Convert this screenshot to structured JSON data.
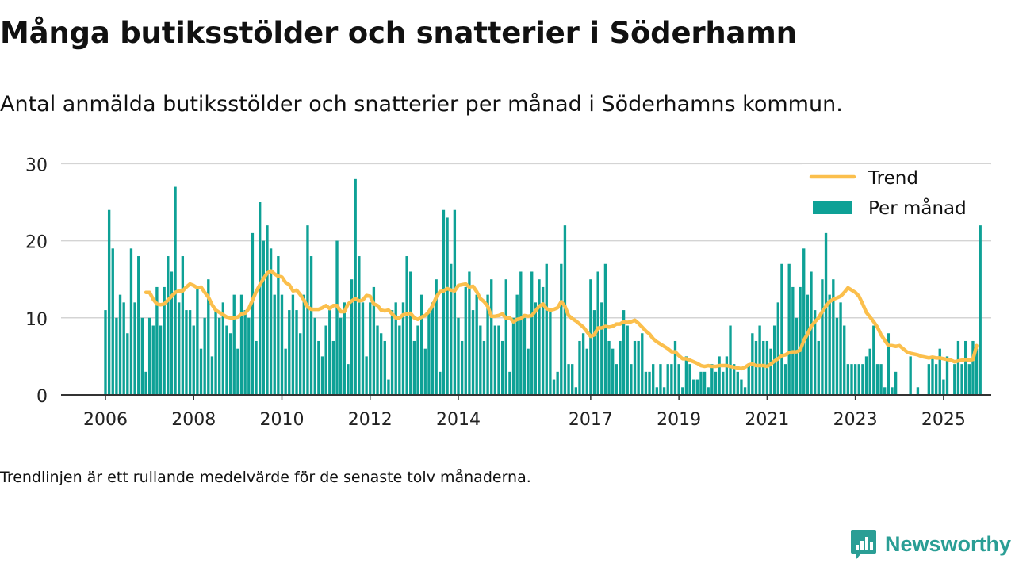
{
  "title": "Många butiksstölder och snatterier i Söderhamn",
  "subtitle": "Antal anmälda butiksstölder och snatterier per månad i Söderhamns kommun.",
  "note": "Trendlinjen är ett rullande medelvärde för de senaste tolv månaderna.",
  "brand": {
    "name": "Newsworthy",
    "color": "#2a9e95"
  },
  "chart_data": {
    "type": "bar",
    "start": "2006-01",
    "frequency": "monthly",
    "y_ticks": [
      0,
      10,
      20,
      30
    ],
    "ylim": [
      0,
      30
    ],
    "x_tick_labels": [
      "2006",
      "2008",
      "2010",
      "2012",
      "2014",
      "2017",
      "2019",
      "2021",
      "2023",
      "2025"
    ],
    "grid": true,
    "legend": {
      "placement": "top-right",
      "entries": [
        "Trend",
        "Per månad"
      ]
    },
    "colors": {
      "bars": "#0ea196",
      "trend": "#fbbf4c",
      "grid": "#d4d4d4",
      "axis": "#333333"
    },
    "series": [
      {
        "name": "Per månad",
        "kind": "bar",
        "values": [
          11,
          24,
          19,
          10,
          13,
          12,
          8,
          19,
          12,
          18,
          10,
          3,
          10,
          9,
          14,
          9,
          14,
          18,
          16,
          27,
          12,
          18,
          11,
          11,
          9,
          14,
          6,
          10,
          15,
          5,
          11,
          10,
          12,
          9,
          8,
          13,
          6,
          13,
          11,
          10,
          21,
          7,
          25,
          20,
          22,
          19,
          13,
          18,
          13,
          6,
          11,
          13,
          11,
          8,
          13,
          22,
          18,
          10,
          7,
          5,
          9,
          11,
          7,
          20,
          10,
          12,
          4,
          15,
          28,
          18,
          12,
          5,
          12,
          14,
          9,
          8,
          7,
          2,
          11,
          12,
          9,
          12,
          18,
          16,
          7,
          9,
          13,
          6,
          11,
          12,
          15,
          3,
          24,
          23,
          17,
          24,
          10,
          7,
          14,
          16,
          11,
          13,
          9,
          7,
          13,
          15,
          9,
          9,
          7,
          15,
          3,
          10,
          13,
          16,
          10,
          6,
          16,
          12,
          15,
          14,
          17,
          11,
          2,
          3,
          17,
          22,
          4,
          4,
          1,
          7,
          8,
          6,
          15,
          11,
          16,
          12,
          17,
          7,
          6,
          4,
          7,
          11,
          9,
          4,
          7,
          7,
          8,
          3,
          3,
          4,
          1,
          4,
          1,
          4,
          4,
          7,
          4,
          1,
          5,
          4,
          2,
          2,
          3,
          3,
          1,
          4,
          3,
          5,
          3,
          5,
          9,
          4,
          3,
          2,
          1,
          4,
          8,
          7,
          9,
          7,
          7,
          6,
          9,
          12,
          17,
          4,
          17,
          14,
          10,
          14,
          19,
          13,
          16,
          11,
          7,
          15,
          21,
          13,
          15,
          10,
          12,
          9,
          4,
          4,
          4,
          4,
          4,
          5,
          6,
          9,
          4,
          4,
          1,
          8,
          1,
          3,
          0,
          0,
          0,
          5,
          0,
          1,
          0,
          0,
          4,
          5,
          4,
          6,
          2,
          5,
          0,
          4,
          7,
          4,
          7,
          4,
          7,
          6,
          22
        ]
      },
      {
        "name": "Trend",
        "kind": "line",
        "start": "2006-12",
        "values": [
          13.3,
          13.3,
          12.4,
          11.8,
          11.7,
          11.8,
          12.3,
          12.8,
          13.3,
          13.5,
          13.5,
          14.0,
          14.4,
          14.2,
          13.9,
          14.0,
          13.3,
          12.7,
          11.7,
          11.0,
          10.7,
          10.4,
          10.1,
          10.0,
          10.0,
          10.1,
          10.5,
          10.6,
          11.2,
          12.3,
          13.4,
          14.3,
          15.1,
          15.8,
          16.1,
          15.7,
          15.4,
          15.3,
          14.6,
          14.3,
          13.5,
          13.6,
          13.0,
          12.3,
          11.4,
          11.1,
          11.1,
          11.1,
          11.3,
          11.6,
          11.2,
          11.6,
          11.6,
          10.8,
          10.8,
          11.8,
          12.2,
          12.5,
          12.2,
          12.3,
          12.9,
          12.8,
          11.8,
          11.6,
          11.0,
          10.9,
          11.0,
          10.5,
          10.0,
          10.0,
          10.4,
          10.5,
          10.6,
          10.0,
          9.8,
          10.1,
          10.3,
          10.8,
          11.6,
          12.7,
          13.4,
          13.5,
          13.8,
          13.6,
          13.5,
          14.2,
          14.3,
          14.4,
          14.0,
          14.1,
          13.4,
          12.5,
          12.1,
          11.5,
          10.2,
          10.2,
          10.3,
          10.5,
          9.9,
          10.0,
          9.5,
          9.8,
          9.9,
          10.3,
          10.2,
          10.3,
          10.9,
          11.5,
          11.8,
          11.2,
          11.0,
          11.1,
          11.3,
          12.1,
          11.5,
          10.3,
          9.9,
          9.6,
          9.2,
          8.8,
          8.2,
          7.6,
          7.8,
          8.7,
          8.7,
          8.9,
          8.8,
          8.9,
          9.2,
          9.2,
          9.5,
          9.4,
          9.5,
          9.7,
          9.3,
          8.8,
          8.3,
          7.9,
          7.3,
          6.9,
          6.6,
          6.3,
          6.0,
          5.6,
          5.6,
          5.1,
          4.7,
          4.7,
          4.5,
          4.3,
          4.1,
          3.8,
          3.7,
          3.8,
          3.7,
          3.7,
          3.8,
          3.8,
          3.8,
          3.7,
          3.6,
          3.5,
          3.4,
          3.6,
          3.9,
          4.0,
          3.8,
          3.8,
          3.8,
          3.7,
          4.0,
          4.4,
          4.7,
          5.1,
          5.2,
          5.5,
          5.6,
          5.6,
          5.8,
          7.1,
          7.9,
          8.9,
          9.5,
          10.0,
          10.8,
          11.5,
          12.1,
          12.4,
          12.6,
          12.8,
          13.3,
          13.9,
          13.6,
          13.3,
          12.8,
          11.8,
          10.7,
          10.1,
          9.5,
          8.8,
          7.8,
          7.1,
          6.4,
          6.4,
          6.3,
          6.4,
          6.0,
          5.6,
          5.4,
          5.3,
          5.2,
          5.0,
          4.9,
          4.8,
          4.9,
          4.8,
          4.8,
          4.7,
          4.6,
          4.5,
          4.3,
          4.4,
          4.5,
          4.6,
          4.5,
          4.6,
          6.4
        ]
      }
    ]
  }
}
